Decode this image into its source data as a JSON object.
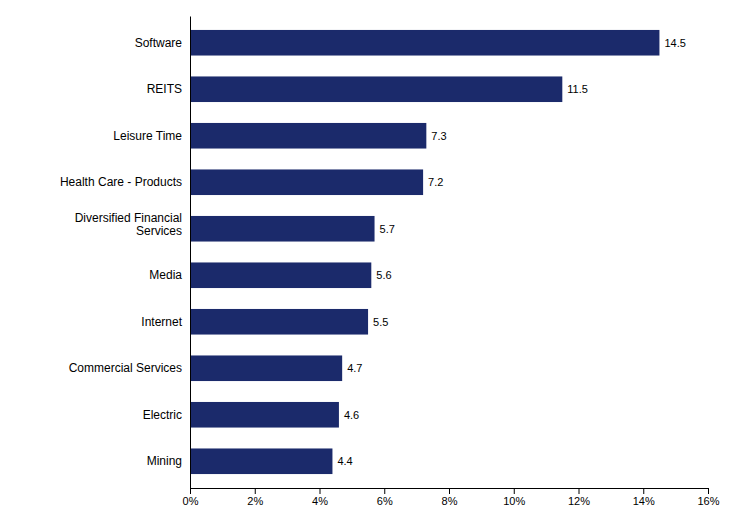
{
  "chart_data": {
    "type": "bar",
    "orientation": "horizontal",
    "categories": [
      "Mining",
      "Electric",
      "Commercial Services",
      "Internet",
      "Media",
      "Diversified Financial\nServices",
      "Health Care - Products",
      "Leisure Time",
      "REITS",
      "Software"
    ],
    "values": [
      4.4,
      4.6,
      4.7,
      5.5,
      5.6,
      5.7,
      7.2,
      7.3,
      11.5,
      14.5
    ],
    "color": "#1B2A6B",
    "xlim": [
      0,
      16
    ],
    "xticks": [
      {
        "value": 0,
        "label": "0%"
      },
      {
        "value": 2,
        "label": "2%"
      },
      {
        "value": 4,
        "label": "4%"
      },
      {
        "value": 6,
        "label": "6%"
      },
      {
        "value": 8,
        "label": "8%"
      },
      {
        "value": 10,
        "label": "10%"
      },
      {
        "value": 12,
        "label": "12%"
      },
      {
        "value": 14,
        "label": "14%"
      },
      {
        "value": 16,
        "label": "16%"
      }
    ],
    "grid": false,
    "data_labels": true
  }
}
